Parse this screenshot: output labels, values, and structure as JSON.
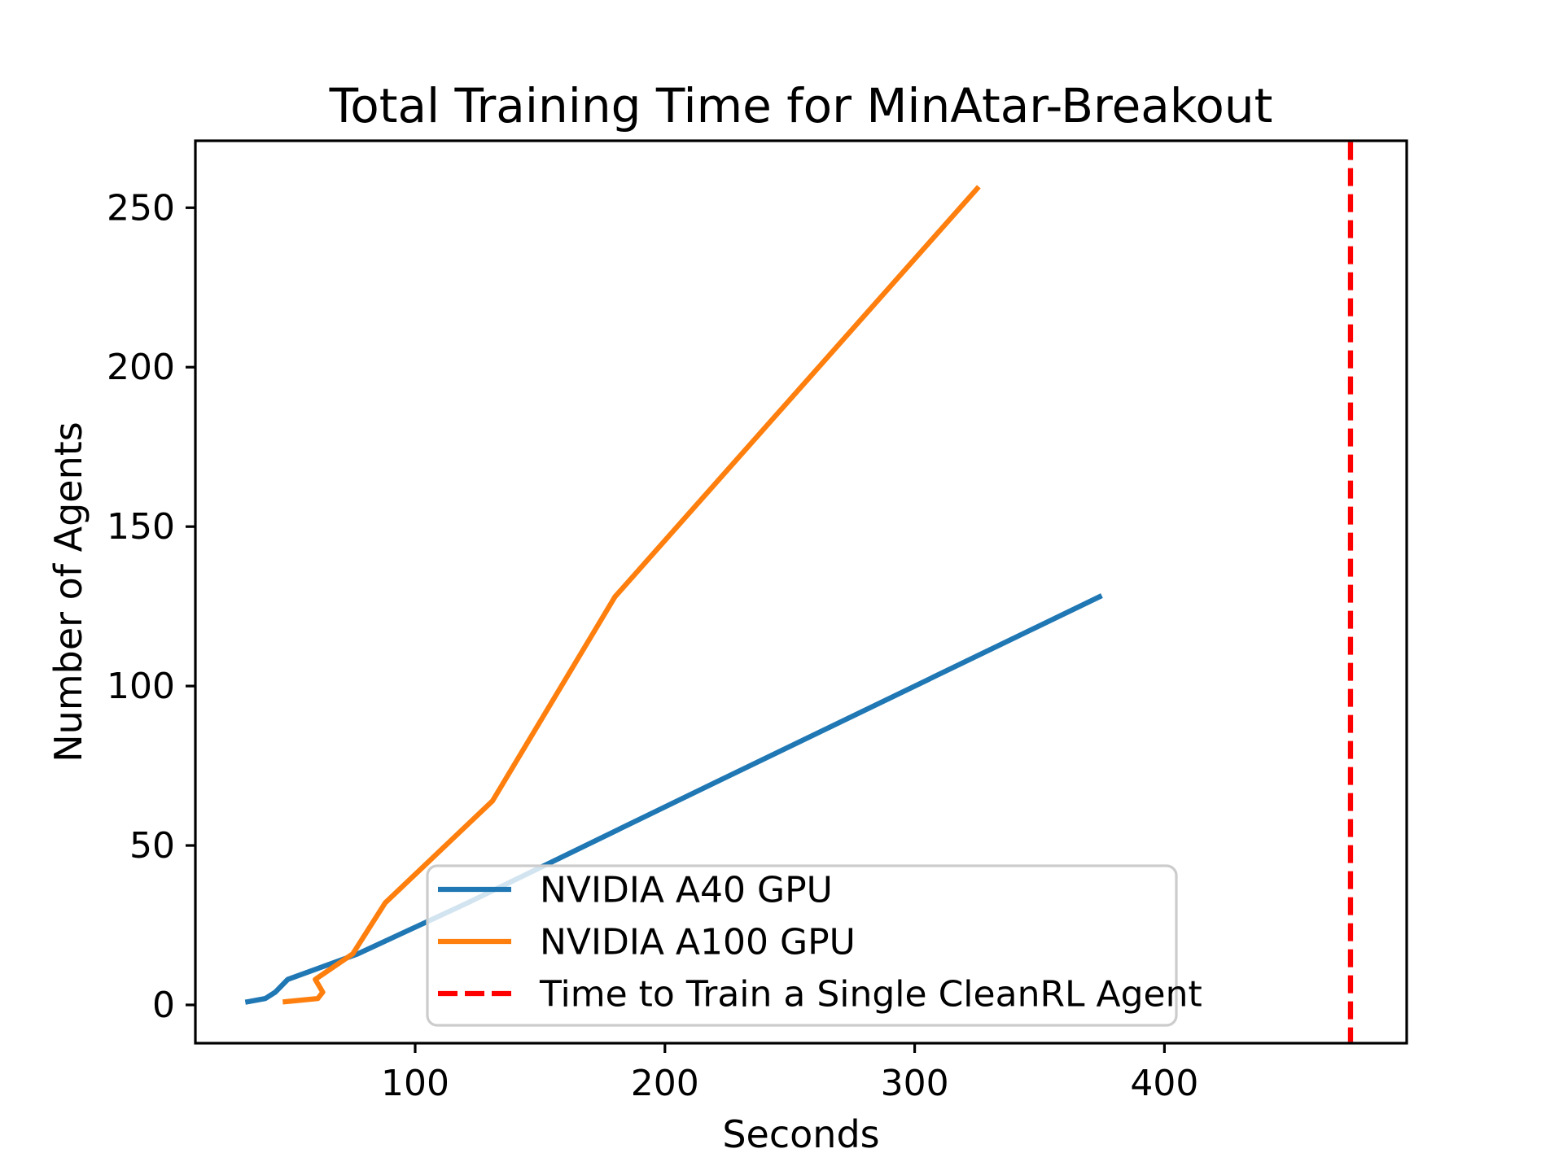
{
  "chart_data": {
    "type": "line",
    "title": "Total Training Time for MinAtar-Breakout",
    "xlabel": "Seconds",
    "ylabel": "Number of Agents",
    "xlim": [
      12,
      497
    ],
    "ylim": [
      -12,
      271
    ],
    "xticks": [
      100,
      200,
      300,
      400
    ],
    "yticks": [
      0,
      50,
      100,
      150,
      200,
      250
    ],
    "grid": false,
    "background_color": "#ffffff",
    "spine_color": "#000000",
    "legend_position": "lower-center-right",
    "series": [
      {
        "name": "NVIDIA A40 GPU",
        "color": "#1f77b4",
        "line_style": "solid",
        "points": [
          [
            33,
            1
          ],
          [
            40,
            2
          ],
          [
            44,
            4
          ],
          [
            49,
            8
          ],
          [
            77,
            16
          ],
          [
            121,
            32
          ],
          [
            205,
            64
          ],
          [
            374,
            128
          ]
        ]
      },
      {
        "name": "NVIDIA A100 GPU",
        "color": "#ff7f0e",
        "line_style": "solid",
        "points": [
          [
            48,
            1
          ],
          [
            61,
            2
          ],
          [
            63,
            4
          ],
          [
            60,
            8
          ],
          [
            75,
            16
          ],
          [
            88,
            32
          ],
          [
            131,
            64
          ],
          [
            180,
            128
          ],
          [
            325,
            256
          ]
        ]
      }
    ],
    "reference_lines": [
      {
        "name": "Time to Train a Single CleanRL Agent",
        "axis": "x",
        "value": 474.5,
        "color": "#ff0000",
        "line_style": "dashed"
      }
    ],
    "legend_entries": [
      {
        "label": "NVIDIA A40 GPU",
        "color": "#1f77b4",
        "line_style": "solid"
      },
      {
        "label": "NVIDIA A100 GPU",
        "color": "#ff7f0e",
        "line_style": "solid"
      },
      {
        "label": "Time to Train a Single CleanRL Agent",
        "color": "#ff0000",
        "line_style": "dashed"
      }
    ]
  }
}
